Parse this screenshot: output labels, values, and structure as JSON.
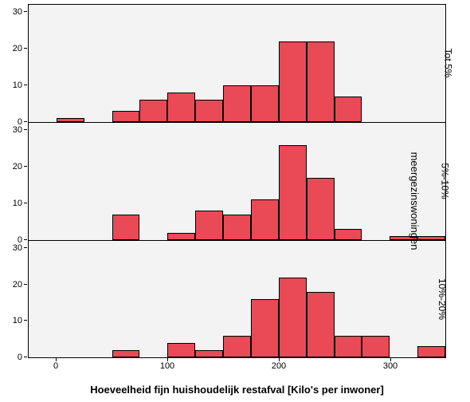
{
  "chart": {
    "type": "histogram-faceted",
    "background_color": "#ffffff",
    "panel_background": "#f3f3f3",
    "border_color": "#000000",
    "bar_fill": "#e94a56",
    "bar_stroke": "#000000",
    "tick_fontsize": 11,
    "label_fontsize": 13,
    "x_label": "Hoeveelheid fijn huishoudelijk restafval [Kilo's per inwoner]",
    "right_label": "meergezinswoningen",
    "x_min": -25,
    "x_max": 350,
    "x_ticks": [
      0,
      100,
      200,
      300
    ],
    "y_min": 0,
    "y_max": 32,
    "y_ticks": [
      0,
      10,
      20,
      30
    ],
    "bin_width": 25,
    "panels": [
      {
        "label": "Tot 5%",
        "bins": [
          {
            "x": 0,
            "h": 1
          },
          {
            "x": 50,
            "h": 3
          },
          {
            "x": 75,
            "h": 6
          },
          {
            "x": 100,
            "h": 8
          },
          {
            "x": 125,
            "h": 6
          },
          {
            "x": 150,
            "h": 10
          },
          {
            "x": 175,
            "h": 10
          },
          {
            "x": 200,
            "h": 22
          },
          {
            "x": 225,
            "h": 22
          },
          {
            "x": 250,
            "h": 7
          }
        ]
      },
      {
        "label": "5%-10%",
        "bins": [
          {
            "x": 50,
            "h": 7
          },
          {
            "x": 100,
            "h": 2
          },
          {
            "x": 125,
            "h": 8
          },
          {
            "x": 150,
            "h": 7
          },
          {
            "x": 175,
            "h": 11
          },
          {
            "x": 200,
            "h": 26
          },
          {
            "x": 225,
            "h": 17
          },
          {
            "x": 250,
            "h": 3
          },
          {
            "x": 300,
            "h": 1
          },
          {
            "x": 325,
            "h": 1
          }
        ]
      },
      {
        "label": "10%-20%",
        "bins": [
          {
            "x": 50,
            "h": 2
          },
          {
            "x": 100,
            "h": 4
          },
          {
            "x": 125,
            "h": 2
          },
          {
            "x": 150,
            "h": 6
          },
          {
            "x": 175,
            "h": 16
          },
          {
            "x": 200,
            "h": 22
          },
          {
            "x": 225,
            "h": 18
          },
          {
            "x": 250,
            "h": 6
          },
          {
            "x": 275,
            "h": 6
          },
          {
            "x": 325,
            "h": 3
          }
        ]
      }
    ]
  }
}
